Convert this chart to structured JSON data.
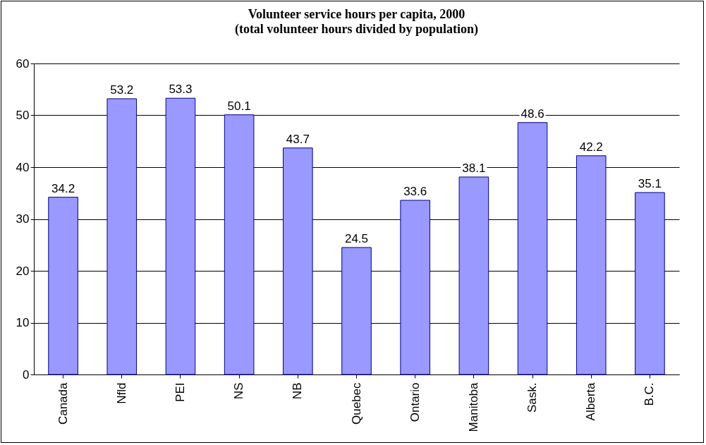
{
  "chart_data": {
    "type": "bar",
    "title": "Volunteer service hours per capita, 2000",
    "subtitle": "(total volunteer hours divided by population)",
    "categories": [
      "Canada",
      "Nfld",
      "PEI",
      "NS",
      "NB",
      "Quebec",
      "Ontario",
      "Manitoba",
      "Sask.",
      "Alberta",
      "B.C."
    ],
    "values": [
      34.2,
      53.2,
      53.3,
      50.1,
      43.7,
      24.5,
      33.6,
      38.1,
      48.6,
      42.2,
      35.1
    ],
    "color": "#9999ff",
    "ylim": [
      0,
      60
    ],
    "yticks": [
      0,
      10,
      20,
      30,
      40,
      50,
      60
    ],
    "grid": "y",
    "data_labels": true
  }
}
